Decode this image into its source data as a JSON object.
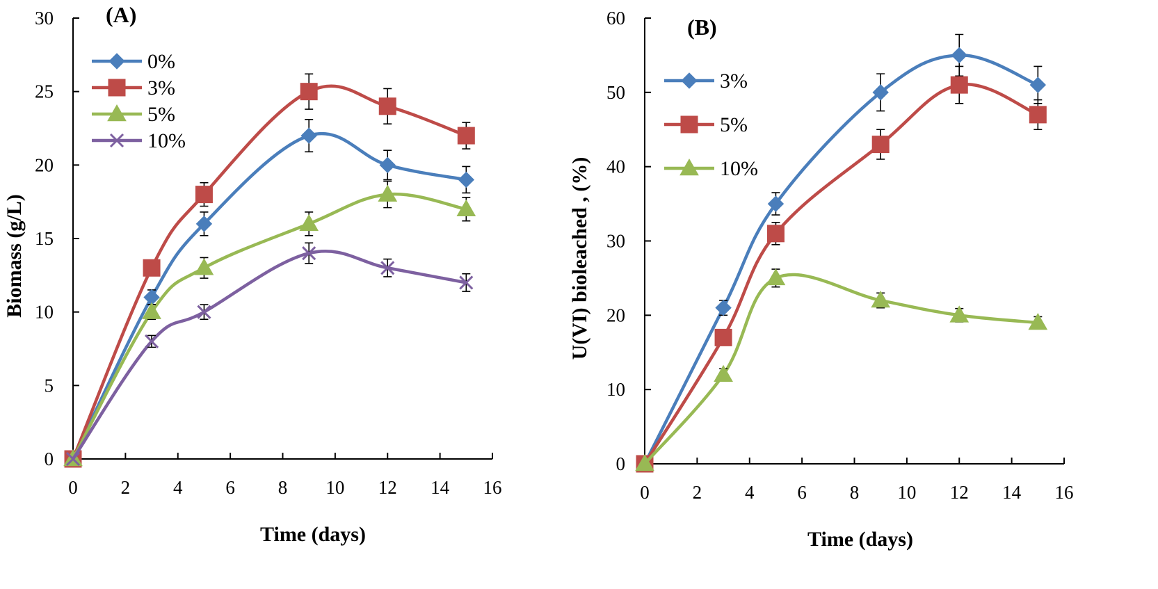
{
  "chart_data": [
    {
      "id": "A",
      "type": "line",
      "panel_label": "(A)",
      "title": "",
      "xlabel": "Time (days)",
      "ylabel": "Biomass (g/L)",
      "xlim": [
        0,
        16
      ],
      "ylim": [
        0,
        30
      ],
      "xticks": [
        0,
        2,
        4,
        6,
        8,
        10,
        12,
        14,
        16
      ],
      "yticks": [
        0,
        5,
        10,
        15,
        20,
        25,
        30
      ],
      "grid": false,
      "legend_position": "top-left",
      "x": [
        0,
        3,
        5,
        9,
        12,
        15
      ],
      "series": [
        {
          "name": "0%",
          "color": "#4A7EBB",
          "marker": "diamond",
          "values": [
            0,
            11,
            16,
            22,
            20,
            19
          ],
          "errors": [
            0,
            0.5,
            0.8,
            1.1,
            1.0,
            0.9
          ]
        },
        {
          "name": "3%",
          "color": "#BE4B48",
          "marker": "square",
          "values": [
            0,
            13,
            18,
            25,
            24,
            22
          ],
          "errors": [
            0,
            0.5,
            0.8,
            1.2,
            1.2,
            0.9
          ]
        },
        {
          "name": "5%",
          "color": "#98B954",
          "marker": "triangle",
          "values": [
            0,
            10,
            13,
            16,
            18,
            17
          ],
          "errors": [
            0,
            0.5,
            0.7,
            0.8,
            0.9,
            0.8
          ]
        },
        {
          "name": "10%",
          "color": "#7D60A0",
          "marker": "x",
          "values": [
            0,
            8,
            10,
            14,
            13,
            12
          ],
          "errors": [
            0,
            0.4,
            0.5,
            0.7,
            0.6,
            0.6
          ]
        }
      ]
    },
    {
      "id": "B",
      "type": "line",
      "panel_label": "(B)",
      "title": "",
      "xlabel": "Time (days)",
      "ylabel": "U(VI) bioleached , (%)",
      "xlim": [
        0,
        16
      ],
      "ylim": [
        0,
        60
      ],
      "xticks": [
        0,
        2,
        4,
        6,
        8,
        10,
        12,
        14,
        16
      ],
      "yticks": [
        0,
        10,
        20,
        30,
        40,
        50,
        60
      ],
      "grid": false,
      "legend_position": "top-left",
      "x": [
        0,
        3,
        5,
        9,
        12,
        15
      ],
      "series": [
        {
          "name": "3%",
          "color": "#4A7EBB",
          "marker": "diamond",
          "values": [
            0,
            21,
            35,
            50,
            55,
            51
          ],
          "errors": [
            0,
            1.0,
            1.5,
            2.5,
            2.8,
            2.5
          ]
        },
        {
          "name": "5%",
          "color": "#BE4B48",
          "marker": "square",
          "values": [
            0,
            17,
            31,
            43,
            51,
            47
          ],
          "errors": [
            0,
            1.0,
            1.5,
            2.0,
            2.5,
            2.0
          ]
        },
        {
          "name": "10%",
          "color": "#98B954",
          "marker": "triangle",
          "values": [
            0,
            12,
            25,
            22,
            20,
            19
          ],
          "errors": [
            0,
            0.8,
            1.2,
            1.0,
            0.9,
            0.8
          ]
        }
      ]
    }
  ]
}
